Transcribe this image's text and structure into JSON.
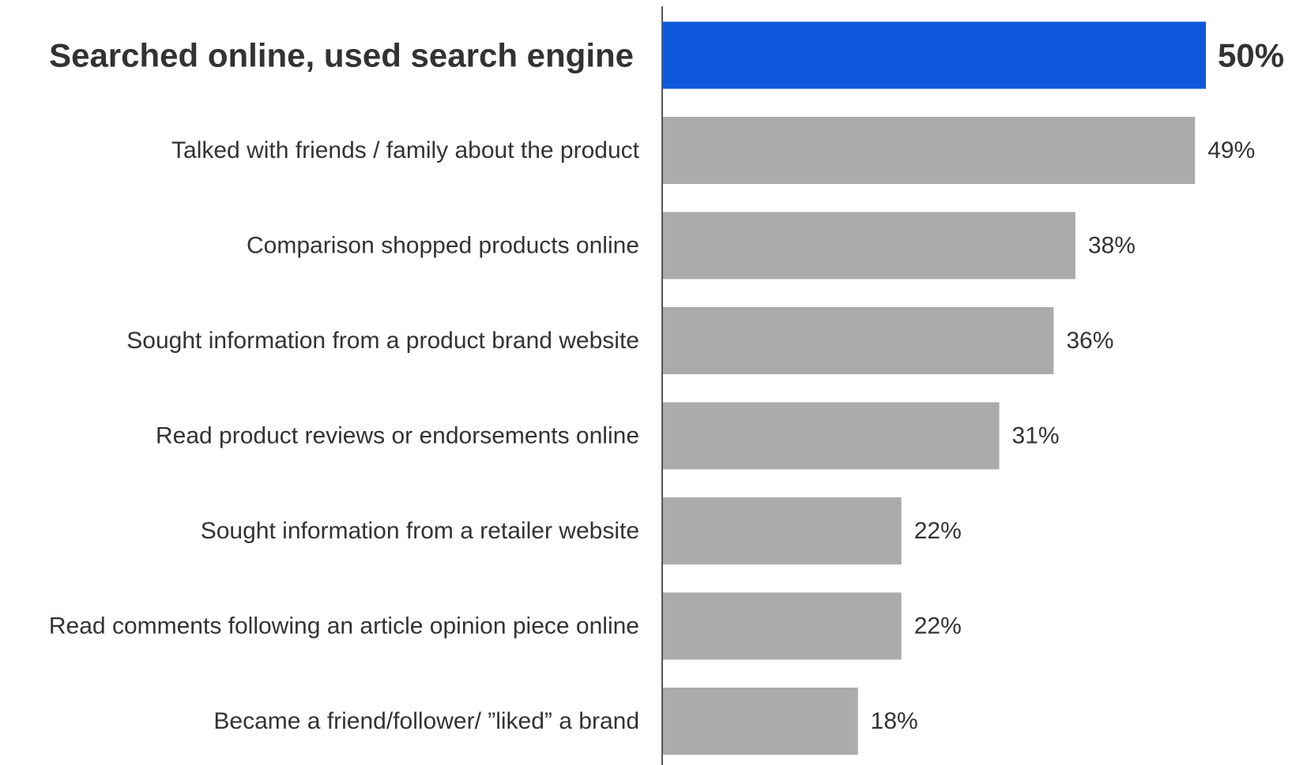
{
  "chart_data": {
    "type": "bar",
    "orientation": "horizontal",
    "categories": [
      "Searched online, used search engine",
      "Talked with friends / family about the product",
      "Comparison shopped products online",
      "Sought information from a product brand website",
      "Read product reviews or endorsements online",
      "Sought information from a retailer website",
      "Read comments following an article opinion piece online",
      "Became a friend/follower/ ”liked” a brand"
    ],
    "values": [
      50,
      49,
      38,
      36,
      31,
      22,
      22,
      18
    ],
    "value_labels": [
      "50%",
      "49%",
      "38%",
      "36%",
      "31%",
      "22%",
      "22%",
      "18%"
    ],
    "unit": "%",
    "highlight_index": 0,
    "title": "",
    "xlabel": "",
    "ylabel": "",
    "xlim": [
      0,
      50
    ],
    "grid": false,
    "legend": "none"
  },
  "colors": {
    "highlight_bar": "#0E59DB",
    "bar": "#ABABAB",
    "axis": "#555555",
    "text": "#333333"
  }
}
